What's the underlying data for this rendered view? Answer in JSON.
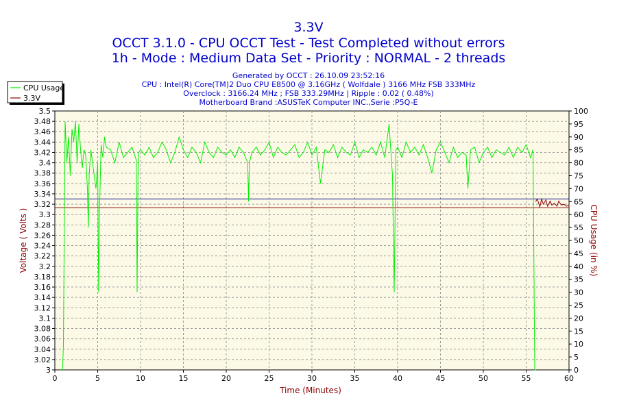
{
  "chart_data": {
    "type": "line",
    "title": "3.3V",
    "subtitle_lines": [
      "OCCT 3.1.0 - CPU OCCT Test - Test Completed without errors",
      "1h - Mode : Medium Data Set - Priority : NORMAL - 2 threads"
    ],
    "info_lines": [
      "Generated by OCCT : 26.10.09 23:52:16",
      "CPU : Intel(R) Core(TM)2 Duo CPU E8500 @ 3.16GHz ( Wolfdale ) 3166 MHz FSB 333MHz",
      "Overclock : 3166.24 MHz ; FSB 333.29MHz | Ripple : 0.02 ( 0.48%)",
      "Motherboard Brand :ASUSTeK Computer INC.,Serie :P5Q-E"
    ],
    "xlabel": "Time (Minutes)",
    "ylabel_left": "Voltage ( Volts )",
    "ylabel_right": "CPU Usage (in %)",
    "xlim": [
      0,
      60
    ],
    "ylim_left": [
      3.0,
      3.5
    ],
    "ylim_right": [
      0,
      100
    ],
    "x_ticks": [
      "0",
      "5",
      "10",
      "15",
      "20",
      "25",
      "30",
      "35",
      "40",
      "45",
      "50",
      "55",
      "60"
    ],
    "y_left_ticks": [
      "3",
      "3.02",
      "3.04",
      "3.06",
      "3.08",
      "3.1",
      "3.12",
      "3.14",
      "3.16",
      "3.18",
      "3.2",
      "3.22",
      "3.24",
      "3.26",
      "3.28",
      "3.3",
      "3.32",
      "3.34",
      "3.36",
      "3.38",
      "3.4",
      "3.42",
      "3.44",
      "3.46",
      "3.48",
      "3.5"
    ],
    "y_right_ticks": [
      "0",
      "5",
      "10",
      "15",
      "20",
      "25",
      "30",
      "35",
      "40",
      "45",
      "50",
      "55",
      "60",
      "65",
      "70",
      "75",
      "80",
      "85",
      "90",
      "95",
      "100"
    ],
    "grid": true,
    "legend_position": "top-left",
    "reference_lines": [
      {
        "axis": "left",
        "y": 3.33,
        "color": "#00008b"
      },
      {
        "axis": "left",
        "y": 3.313,
        "color": "#8b0000"
      }
    ],
    "series": [
      {
        "name": "CPU Usage",
        "axis": "right",
        "color": "#00ee00",
        "x": [
          0.9,
          1.0,
          1.1,
          1.2,
          1.4,
          1.6,
          1.8,
          2.0,
          2.2,
          2.4,
          2.6,
          2.8,
          3.0,
          3.2,
          3.4,
          3.6,
          3.8,
          3.9,
          4.0,
          4.2,
          4.4,
          4.6,
          4.8,
          5.0,
          5.1,
          5.2,
          5.4,
          5.6,
          5.8,
          6.0,
          6.5,
          7.0,
          7.5,
          8.0,
          8.5,
          9.0,
          9.5,
          9.6,
          9.7,
          9.8,
          10.0,
          10.5,
          11.0,
          11.5,
          12.0,
          12.5,
          13.0,
          13.5,
          14.0,
          14.5,
          15.0,
          15.5,
          16.0,
          16.5,
          17.0,
          17.5,
          18.0,
          18.5,
          19.0,
          19.5,
          20.0,
          20.5,
          21.0,
          21.5,
          22.0,
          22.5,
          22.6,
          22.7,
          23.0,
          23.5,
          24.0,
          24.5,
          25.0,
          25.5,
          26.0,
          26.5,
          27.0,
          27.5,
          28.0,
          28.5,
          29.0,
          29.5,
          30.0,
          30.5,
          31.0,
          31.5,
          32.0,
          32.5,
          33.0,
          33.5,
          34.0,
          34.5,
          35.0,
          35.5,
          36.0,
          36.5,
          37.0,
          37.5,
          38.0,
          38.5,
          39.0,
          39.2,
          39.4,
          39.6,
          39.8,
          40.0,
          40.5,
          41.0,
          41.5,
          42.0,
          42.5,
          43.0,
          43.5,
          44.0,
          44.5,
          45.0,
          45.5,
          46.0,
          46.5,
          47.0,
          47.5,
          48.0,
          48.2,
          48.5,
          49.0,
          49.5,
          50.0,
          50.5,
          51.0,
          51.5,
          52.0,
          52.5,
          53.0,
          53.5,
          54.0,
          54.5,
          55.0,
          55.5,
          55.8,
          56.0,
          56.1
        ],
        "values": [
          0,
          10,
          55,
          96,
          80,
          90,
          75,
          93,
          88,
          96,
          80,
          95,
          85,
          78,
          85,
          83,
          70,
          55,
          75,
          85,
          80,
          75,
          70,
          80,
          30,
          60,
          87,
          82,
          90,
          86,
          85,
          80,
          88,
          82,
          84,
          86,
          81,
          30,
          75,
          84,
          85,
          83,
          86,
          82,
          84,
          88,
          85,
          80,
          84,
          90,
          85,
          82,
          86,
          84,
          80,
          88,
          84,
          82,
          86,
          84,
          83,
          85,
          82,
          86,
          84,
          80,
          65,
          80,
          84,
          86,
          83,
          85,
          88,
          82,
          86,
          84,
          83,
          85,
          87,
          82,
          84,
          88,
          83,
          86,
          72,
          85,
          84,
          87,
          82,
          86,
          84,
          83,
          88,
          82,
          85,
          84,
          86,
          83,
          88,
          82,
          95,
          85,
          75,
          30,
          85,
          86,
          82,
          88,
          84,
          86,
          83,
          87,
          82,
          76,
          85,
          88,
          84,
          80,
          86,
          82,
          84,
          83,
          70,
          85,
          86,
          80,
          84,
          86,
          82,
          85,
          84,
          83,
          86,
          82,
          86,
          84,
          87,
          82,
          85,
          0,
          0
        ]
      },
      {
        "name": "3.3V",
        "axis": "left",
        "color": "#8b0000",
        "x": [
          56.1,
          56.3,
          56.6,
          56.8,
          57.0,
          57.3,
          57.5,
          57.8,
          58.0,
          58.3,
          58.6,
          58.8,
          59.1,
          59.4,
          59.7,
          60.0
        ],
        "values": [
          3.325,
          3.33,
          3.315,
          3.33,
          3.32,
          3.328,
          3.316,
          3.326,
          3.318,
          3.322,
          3.316,
          3.326,
          3.318,
          3.32,
          3.316,
          3.318
        ]
      }
    ]
  }
}
